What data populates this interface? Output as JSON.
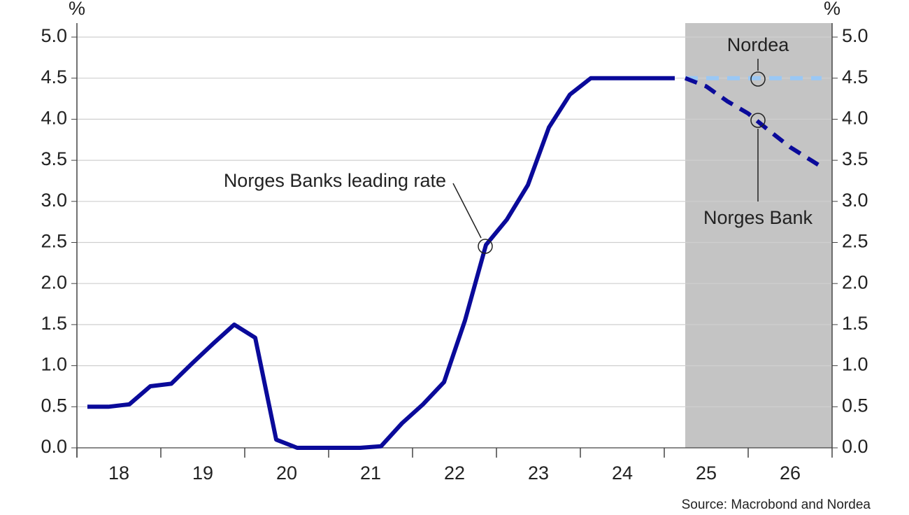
{
  "chart_data": {
    "type": "line",
    "y_unit": "%",
    "source": "Source: Macrobond and Nordea",
    "xlim": [
      2018,
      2027
    ],
    "xticks": [
      {
        "value": 2018.5,
        "label": "18"
      },
      {
        "value": 2019.5,
        "label": "19"
      },
      {
        "value": 2020.5,
        "label": "20"
      },
      {
        "value": 2021.5,
        "label": "21"
      },
      {
        "value": 2022.5,
        "label": "22"
      },
      {
        "value": 2023.5,
        "label": "23"
      },
      {
        "value": 2024.5,
        "label": "24"
      },
      {
        "value": 2025.5,
        "label": "25"
      },
      {
        "value": 2026.5,
        "label": "26"
      }
    ],
    "ylim": [
      0,
      5
    ],
    "yticks": [
      {
        "value": 0,
        "label": "0.0"
      },
      0.5,
      {
        "value": 1,
        "label": "1.0"
      },
      1.5,
      {
        "value": 2,
        "label": "2.0"
      },
      2.5,
      {
        "value": 3,
        "label": "3.0"
      },
      3.5,
      {
        "value": 4,
        "label": "4.0"
      },
      4.5,
      {
        "value": 5,
        "label": "5.0"
      }
    ],
    "y2lim": [
      0,
      5
    ],
    "y2ticks": [
      {
        "value": 0,
        "label": "0.0"
      },
      0.5,
      {
        "value": 1,
        "label": "1.0"
      },
      1.5,
      {
        "value": 2,
        "label": "2.0"
      },
      2.5,
      {
        "value": 3,
        "label": "3.0"
      },
      3.5,
      {
        "value": 4,
        "label": "4.0"
      },
      4.5,
      {
        "value": 5,
        "label": "5.0"
      }
    ],
    "grid": true,
    "shaded_region": [
      2025.25,
      2027
    ],
    "shade_color": "#c4c4c4",
    "series": [
      {
        "name": "Norges Banks leading rate",
        "color": "#0a0a9a",
        "dashed": false,
        "x": [
          2018.125,
          2018.375,
          2018.625,
          2018.875,
          2019.125,
          2019.375,
          2019.625,
          2019.875,
          2020.125,
          2020.375,
          2020.625,
          2020.875,
          2021.125,
          2021.375,
          2021.625,
          2021.875,
          2022.125,
          2022.375,
          2022.625,
          2022.875,
          2023.125,
          2023.375,
          2023.625,
          2023.875,
          2024.125,
          2024.375,
          2024.625,
          2024.875,
          2025.125
        ],
        "values": [
          0.5,
          0.5,
          0.53,
          0.75,
          0.78,
          1.03,
          1.27,
          1.5,
          1.34,
          0.1,
          0,
          0,
          0,
          0,
          0.02,
          0.3,
          0.53,
          0.8,
          1.55,
          2.47,
          2.78,
          3.2,
          3.9,
          4.3,
          4.5,
          4.5,
          4.5,
          4.5,
          4.5
        ]
      },
      {
        "name": "Nordea",
        "color": "#9ac8f5",
        "dashed": true,
        "x": [
          2025.25,
          2025.5,
          2025.75,
          2026.0,
          2026.25,
          2026.5,
          2026.75,
          2026.875
        ],
        "values": [
          4.5,
          4.5,
          4.5,
          4.5,
          4.5,
          4.5,
          4.5,
          4.5
        ]
      },
      {
        "name": "Norges Bank",
        "color": "#0a0a9a",
        "dashed": true,
        "x": [
          2025.25,
          2025.5,
          2025.75,
          2026.0,
          2026.25,
          2026.5,
          2026.75,
          2026.875
        ],
        "values": [
          4.5,
          4.4,
          4.22,
          4.07,
          3.86,
          3.66,
          3.5,
          3.42
        ]
      }
    ]
  }
}
